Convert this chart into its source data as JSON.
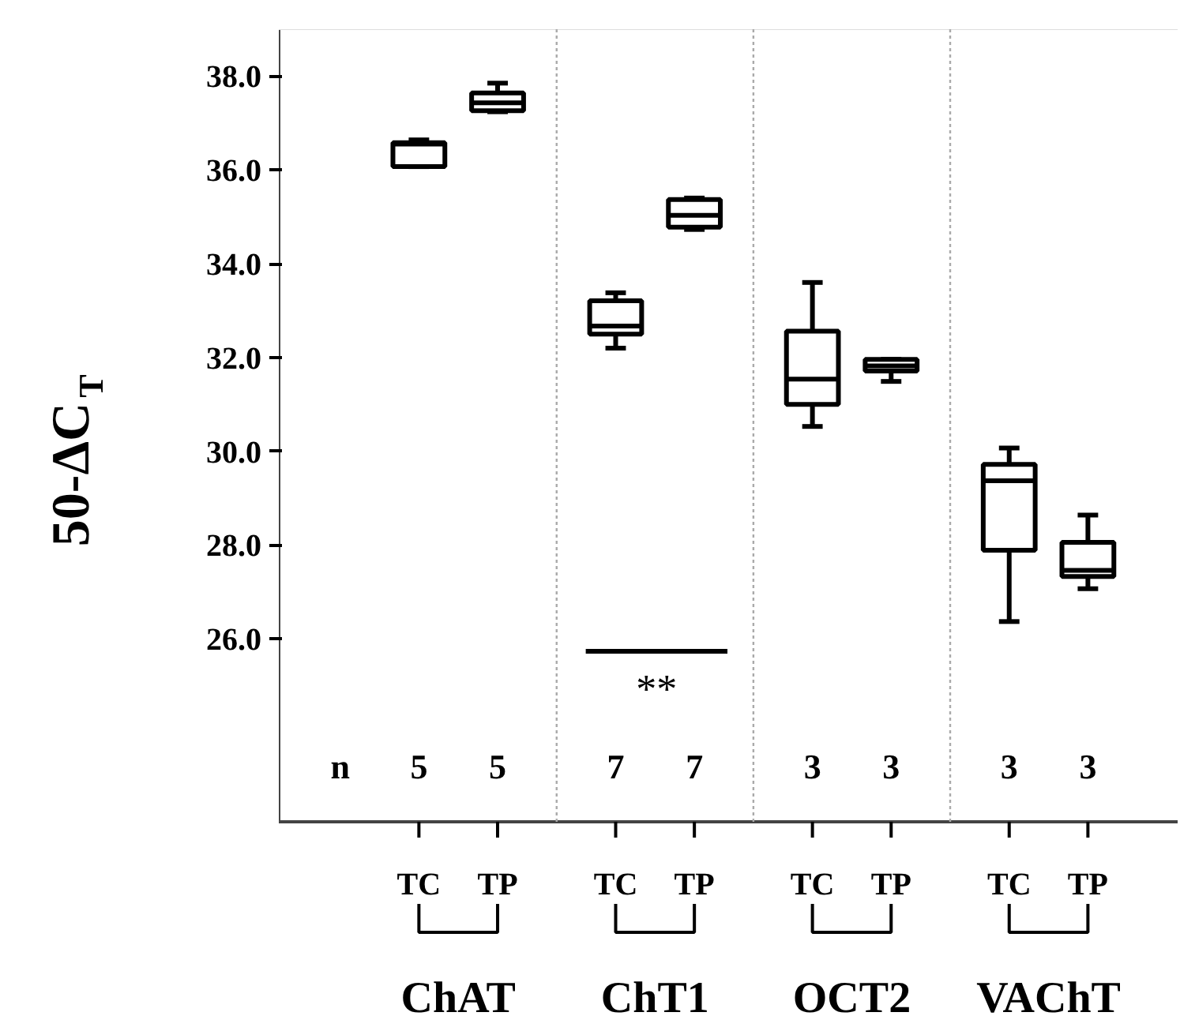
{
  "chart_data": {
    "type": "box",
    "ylabel": "50-ΔC$_{T}$",
    "categories": [
      "TC",
      "TP",
      "TC",
      "TP",
      "TC",
      "TP",
      "TC",
      "TP"
    ],
    "boxes": [
      {
        "low": 36.07,
        "q1": 36.07,
        "median": 36.55,
        "q3": 36.58,
        "high": 36.64
      },
      {
        "low": 37.24,
        "q1": 37.26,
        "median": 37.43,
        "q3": 37.64,
        "high": 37.85
      },
      {
        "low": 32.2,
        "q1": 32.5,
        "median": 32.67,
        "q3": 33.21,
        "high": 33.38
      },
      {
        "low": 34.73,
        "q1": 34.78,
        "median": 35.03,
        "q3": 35.37,
        "high": 35.4
      },
      {
        "low": 30.53,
        "q1": 31.0,
        "median": 31.54,
        "q3": 32.56,
        "high": 33.6
      },
      {
        "low": 31.49,
        "q1": 31.71,
        "median": 31.82,
        "q3": 31.96,
        "high": 31.96
      },
      {
        "low": 26.37,
        "q1": 27.89,
        "median": 29.37,
        "q3": 29.72,
        "high": 30.07
      },
      {
        "low": 27.07,
        "q1": 27.33,
        "median": 27.46,
        "q3": 28.06,
        "high": 28.64
      }
    ],
    "color": "#000000",
    "ylim": [
      22.1,
      39.0
    ],
    "yticks": [
      {
        "value": 26,
        "label": "26.0"
      },
      {
        "value": 28,
        "label": "28.0"
      },
      {
        "value": 30,
        "label": "30.0"
      },
      {
        "value": 32,
        "label": "32.0"
      },
      {
        "value": 34,
        "label": "34.0"
      },
      {
        "value": 36,
        "label": "36.0"
      },
      {
        "value": 38,
        "label": "38.0"
      }
    ],
    "annotations": [
      "n",
      "5",
      "5",
      "7",
      "7",
      "3",
      "3",
      "3",
      "3",
      "ChAT",
      "ChT1",
      "OCT2",
      "VAChT",
      "**"
    ],
    "grid": false
  }
}
